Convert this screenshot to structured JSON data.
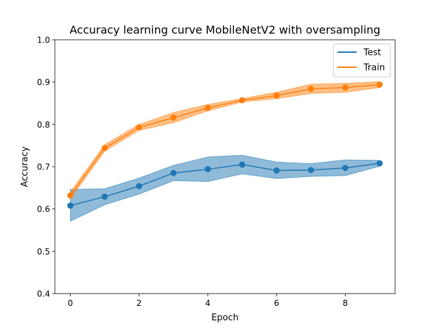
{
  "chart_data": {
    "type": "line",
    "title": "Accuracy learning curve MobileNetV2 with oversampling",
    "xlabel": "Epoch",
    "ylabel": "Accuracy",
    "xlim": [
      -0.45,
      9.45
    ],
    "ylim": [
      0.4,
      1.0
    ],
    "x": [
      0,
      1,
      2,
      3,
      4,
      5,
      6,
      7,
      8,
      9
    ],
    "x_ticks": [
      0,
      2,
      4,
      6,
      8
    ],
    "x_tick_labels": [
      "0",
      "2",
      "4",
      "6",
      "8"
    ],
    "y_ticks": [
      0.4,
      0.5,
      0.6,
      0.7,
      0.8,
      0.9,
      1.0
    ],
    "y_tick_labels": [
      "0.4",
      "0.5",
      "0.6",
      "0.7",
      "0.8",
      "0.9",
      "1.0"
    ],
    "grid": false,
    "legend_position": "top-right",
    "series": [
      {
        "name": "Test",
        "color": "#1f77b4",
        "values": [
          0.608,
          0.629,
          0.654,
          0.685,
          0.694,
          0.705,
          0.691,
          0.692,
          0.697,
          0.708
        ],
        "upper": [
          0.646,
          0.648,
          0.673,
          0.703,
          0.723,
          0.727,
          0.711,
          0.707,
          0.716,
          0.715
        ],
        "lower": [
          0.571,
          0.61,
          0.635,
          0.667,
          0.665,
          0.683,
          0.672,
          0.677,
          0.679,
          0.701
        ]
      },
      {
        "name": "Train",
        "color": "#ff7f0e",
        "values": [
          0.632,
          0.744,
          0.793,
          0.816,
          0.839,
          0.857,
          0.868,
          0.884,
          0.887,
          0.894
        ],
        "upper": [
          0.64,
          0.752,
          0.8,
          0.828,
          0.847,
          0.861,
          0.876,
          0.895,
          0.897,
          0.901
        ],
        "lower": [
          0.624,
          0.737,
          0.786,
          0.804,
          0.832,
          0.853,
          0.861,
          0.873,
          0.876,
          0.887
        ]
      }
    ]
  }
}
